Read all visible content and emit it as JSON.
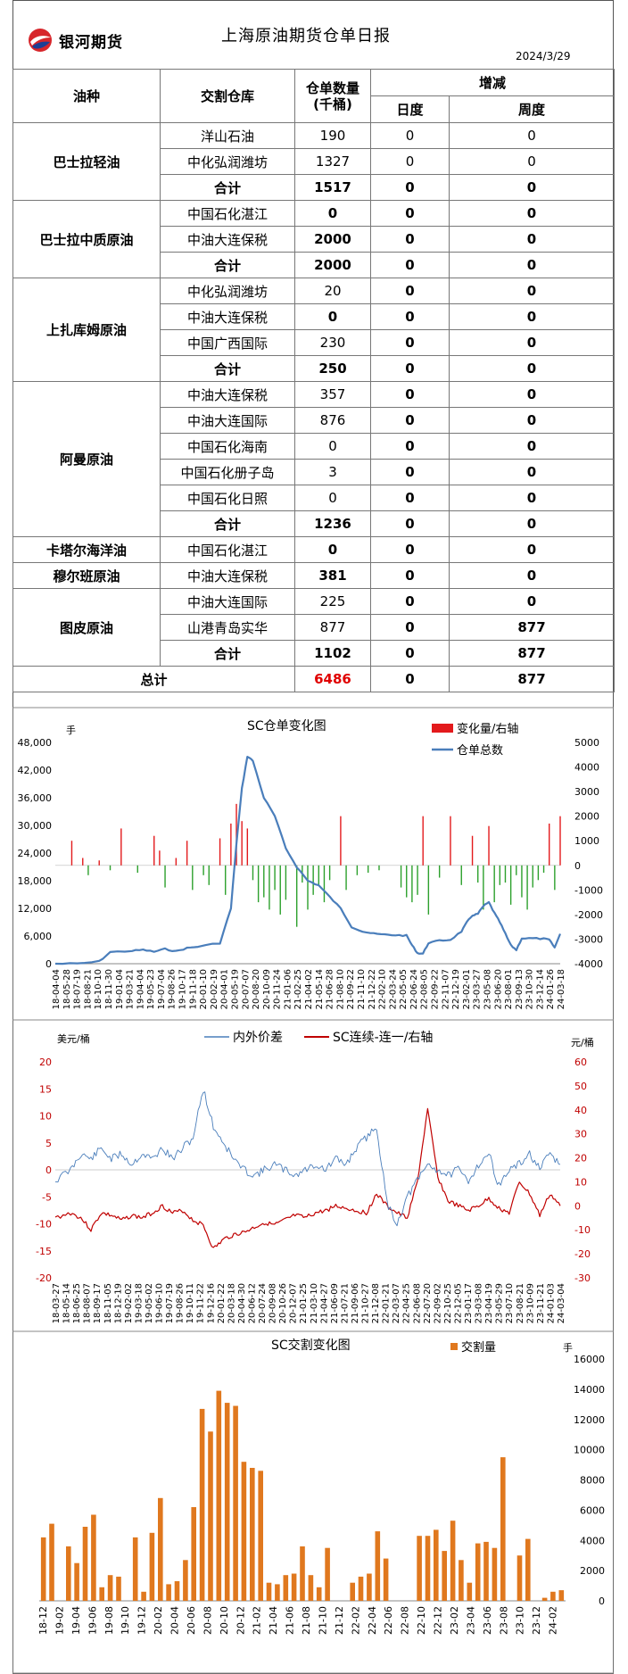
{
  "header": {
    "brand": "银河期货",
    "title": "上海原油期货仓单日报",
    "date": "2024/3/29"
  },
  "table": {
    "col_oil": "油种",
    "col_wh": "交割仓库",
    "col_qty": "仓单数量",
    "col_qty_unit": "(千桶)",
    "col_change": "增减",
    "col_day": "日度",
    "col_week": "周度",
    "groups": [
      {
        "oil": "巴士拉轻油",
        "rows": [
          {
            "wh": "洋山石油",
            "qty": "190",
            "day": "0",
            "week": "0"
          },
          {
            "wh": "中化弘润潍坊",
            "qty": "1327",
            "day": "0",
            "week": "0"
          },
          {
            "wh": "合计",
            "qty": "1517",
            "day": "0",
            "week": "0",
            "total": true
          }
        ]
      },
      {
        "oil": "巴士拉中质原油",
        "rows": [
          {
            "wh": "中国石化湛江",
            "qty": "0",
            "day": "0",
            "week": "0"
          },
          {
            "wh": "中油大连保税",
            "qty": "2000",
            "day": "0",
            "week": "0"
          },
          {
            "wh": "合计",
            "qty": "2000",
            "day": "0",
            "week": "0",
            "total": true
          }
        ]
      },
      {
        "oil": "上扎库姆原油",
        "rows": [
          {
            "wh": "中化弘润潍坊",
            "qty": "20",
            "day": "0",
            "week": "0"
          },
          {
            "wh": "中油大连保税",
            "qty": "0",
            "day": "0",
            "week": "0"
          },
          {
            "wh": "中国广西国际",
            "qty": "230",
            "day": "0",
            "week": "0"
          },
          {
            "wh": "合计",
            "qty": "250",
            "day": "0",
            "week": "0",
            "total": true
          }
        ]
      },
      {
        "oil": "阿曼原油",
        "rows": [
          {
            "wh": "中油大连保税",
            "qty": "357",
            "day": "0",
            "week": "0"
          },
          {
            "wh": "中油大连国际",
            "qty": "876",
            "day": "0",
            "week": "0"
          },
          {
            "wh": "中国石化海南",
            "qty": "0",
            "day": "0",
            "week": "0"
          },
          {
            "wh": "中国石化册子岛",
            "qty": "3",
            "day": "0",
            "week": "0"
          },
          {
            "wh": "中国石化日照",
            "qty": "0",
            "day": "0",
            "week": "0"
          },
          {
            "wh": "合计",
            "qty": "1236",
            "day": "0",
            "week": "0",
            "total": true
          }
        ]
      },
      {
        "oil": "卡塔尔海洋油",
        "rows": [
          {
            "wh": "中国石化湛江",
            "qty": "0",
            "day": "0",
            "week": "0"
          }
        ]
      },
      {
        "oil": "穆尔班原油",
        "rows": [
          {
            "wh": "中油大连保税",
            "qty": "381",
            "day": "0",
            "week": "0"
          }
        ]
      },
      {
        "oil": "图皮原油",
        "rows": [
          {
            "wh": "中油大连国际",
            "qty": "225",
            "day": "0",
            "week": "0"
          },
          {
            "wh": "山港青岛实华",
            "qty": "877",
            "day": "0",
            "week": "877"
          },
          {
            "wh": "合计",
            "qty": "1102",
            "day": "0",
            "week": "877",
            "total": true
          }
        ]
      }
    ],
    "grand_label": "总计",
    "grand_qty": "6486",
    "grand_day": "0",
    "grand_week": "877"
  },
  "colors": {
    "red": "#e31a1c",
    "green": "#2ca02c",
    "blue": "#4a7ebb",
    "darkred": "#c00000",
    "orange": "#e0781e"
  },
  "chart_data": [
    {
      "type": "bar+line",
      "title": "SC仓单变化图",
      "left_unit": "手",
      "legend": [
        "变化量/右轴",
        "仓单总数"
      ],
      "legend_position": "top-right",
      "ylim_left": [
        0,
        48000
      ],
      "yticks_left": [
        "0",
        "6,000",
        "12,000",
        "18,000",
        "24,000",
        "30,000",
        "36,000",
        "42,000",
        "48,000"
      ],
      "ylim_right": [
        -4000,
        5000
      ],
      "yticks_right": [
        "-4000",
        "-3000",
        "-2000",
        "-1000",
        "0",
        "1000",
        "2000",
        "3000",
        "4000",
        "5000"
      ],
      "x_labels": [
        "18-04-04",
        "18-05-28",
        "18-07-19",
        "18-08-21",
        "18-10-10",
        "18-11-30",
        "19-01-04",
        "19-03-21",
        "19-04-04",
        "19-05-23",
        "19-07-04",
        "19-08-26",
        "19-10-17",
        "19-11-18",
        "20-01-10",
        "20-02-19",
        "20-04-01",
        "20-05-19",
        "20-07-07",
        "20-08-20",
        "20-10-09",
        "20-11-24",
        "21-01-06",
        "21-02-25",
        "21-04-02",
        "21-05-14",
        "21-06-28",
        "21-08-10",
        "21-09-22",
        "21-11-10",
        "21-12-22",
        "22-02-10",
        "22-03-24",
        "22-05-05",
        "22-06-24",
        "22-08-05",
        "22-09-22",
        "22-11-07",
        "22-12-19",
        "23-02-01",
        "23-03-27",
        "23-05-08",
        "23-06-20",
        "23-08-01",
        "23-09-13",
        "23-10-30",
        "23-12-14",
        "24-01-26",
        "24-03-18"
      ],
      "total_line": [
        [
          0,
          0
        ],
        [
          4,
          0
        ],
        [
          8,
          500
        ],
        [
          10,
          2500
        ],
        [
          14,
          2800
        ],
        [
          16,
          3000
        ],
        [
          18,
          2600
        ],
        [
          20,
          3200
        ],
        [
          22,
          2700
        ],
        [
          24,
          3400
        ],
        [
          26,
          3700
        ],
        [
          30,
          4500
        ],
        [
          32,
          12000
        ],
        [
          33,
          26000
        ],
        [
          34,
          38000
        ],
        [
          35,
          45000
        ],
        [
          36,
          44000
        ],
        [
          38,
          36000
        ],
        [
          40,
          32000
        ],
        [
          42,
          25000
        ],
        [
          44,
          21000
        ],
        [
          46,
          18000
        ],
        [
          48,
          17000
        ],
        [
          50,
          14500
        ],
        [
          52,
          12000
        ],
        [
          54,
          8000
        ],
        [
          56,
          7000
        ],
        [
          58,
          6500
        ],
        [
          60,
          6300
        ],
        [
          62,
          6200
        ],
        [
          64,
          6100
        ],
        [
          65,
          4000
        ],
        [
          66,
          2300
        ],
        [
          67,
          2200
        ],
        [
          68,
          4500
        ],
        [
          70,
          5000
        ],
        [
          72,
          5200
        ],
        [
          74,
          7000
        ],
        [
          75,
          9000
        ],
        [
          76,
          10500
        ],
        [
          77,
          10800
        ],
        [
          78,
          12500
        ],
        [
          79,
          13300
        ],
        [
          80,
          11000
        ],
        [
          81,
          9000
        ],
        [
          82,
          6500
        ],
        [
          83,
          4000
        ],
        [
          84,
          3000
        ],
        [
          85,
          5500
        ],
        [
          87,
          5500
        ],
        [
          89,
          5400
        ],
        [
          90,
          5200
        ],
        [
          91,
          3500
        ],
        [
          92,
          6486
        ]
      ],
      "change_bars": [
        [
          3,
          1000
        ],
        [
          5,
          300
        ],
        [
          6,
          -400
        ],
        [
          8,
          200
        ],
        [
          10,
          -200
        ],
        [
          12,
          1500
        ],
        [
          15,
          -300
        ],
        [
          18,
          1200
        ],
        [
          19,
          600
        ],
        [
          20,
          -900
        ],
        [
          22,
          300
        ],
        [
          24,
          1000
        ],
        [
          25,
          -1000
        ],
        [
          27,
          -400
        ],
        [
          28,
          -800
        ],
        [
          30,
          1100
        ],
        [
          31,
          -1200
        ],
        [
          32,
          1700
        ],
        [
          33,
          2500
        ],
        [
          34,
          1800
        ],
        [
          35,
          1500
        ],
        [
          36,
          -600
        ],
        [
          37,
          -1500
        ],
        [
          38,
          -1300
        ],
        [
          39,
          -1800
        ],
        [
          40,
          -1000
        ],
        [
          41,
          -2000
        ],
        [
          42,
          -1400
        ],
        [
          44,
          -2500
        ],
        [
          45,
          -700
        ],
        [
          46,
          -1800
        ],
        [
          47,
          -1200
        ],
        [
          48,
          -800
        ],
        [
          49,
          -1500
        ],
        [
          50,
          -600
        ],
        [
          52,
          2000
        ],
        [
          53,
          -1000
        ],
        [
          55,
          -400
        ],
        [
          57,
          -300
        ],
        [
          59,
          -200
        ],
        [
          63,
          -900
        ],
        [
          64,
          -1300
        ],
        [
          65,
          -1500
        ],
        [
          66,
          -1200
        ],
        [
          67,
          2000
        ],
        [
          68,
          -2000
        ],
        [
          70,
          -500
        ],
        [
          72,
          2000
        ],
        [
          74,
          -800
        ],
        [
          76,
          1200
        ],
        [
          77,
          -700
        ],
        [
          78,
          -1800
        ],
        [
          79,
          1600
        ],
        [
          80,
          -1500
        ],
        [
          81,
          -800
        ],
        [
          82,
          -700
        ],
        [
          83,
          -1600
        ],
        [
          84,
          -400
        ],
        [
          85,
          -1300
        ],
        [
          86,
          -1800
        ],
        [
          87,
          -900
        ],
        [
          88,
          -600
        ],
        [
          89,
          -300
        ],
        [
          90,
          1700
        ],
        [
          91,
          -1000
        ],
        [
          92,
          2000
        ]
      ]
    },
    {
      "type": "line",
      "title_left": "内外价差",
      "title_right": "SC连续-连一/右轴",
      "left_unit": "美元/桶",
      "right_unit": "元/桶",
      "ylim_left": [
        -20,
        20
      ],
      "yticks_left": [
        "-20",
        "-15",
        "-10",
        "-5",
        "0",
        "5",
        "10",
        "15",
        "20"
      ],
      "ylim_right": [
        -30,
        60
      ],
      "yticks_right": [
        "-30",
        "-20",
        "-10",
        "0",
        "10",
        "20",
        "30",
        "40",
        "50",
        "60"
      ],
      "x_labels": [
        "18-03-27",
        "18-05-14",
        "18-06-25",
        "18-08-07",
        "18-09-17",
        "18-11-05",
        "18-12-19",
        "19-02-02",
        "19-03-18",
        "19-05-02",
        "19-06-10",
        "19-07-19",
        "19-08-26",
        "19-10-11",
        "19-11-22",
        "19-12-16",
        "20-01-22",
        "20-03-18",
        "20-04-30",
        "20-06-12",
        "20-07-24",
        "20-09-08",
        "20-10-26",
        "20-12-07",
        "21-01-25",
        "21-03-10",
        "21-04-27",
        "21-06-09",
        "21-07-21",
        "21-09-06",
        "21-10-27",
        "21-12-08",
        "22-01-21",
        "22-03-07",
        "22-04-25",
        "22-06-08",
        "22-07-20",
        "22-09-02",
        "22-10-25",
        "22-12-05",
        "23-01-17",
        "23-03-08",
        "23-04-19",
        "23-05-29",
        "23-07-10",
        "23-08-21",
        "23-10-09",
        "23-11-21",
        "24-01-03",
        "24-03-04"
      ],
      "spread_left": [
        [
          0,
          -2
        ],
        [
          3,
          0
        ],
        [
          5,
          3
        ],
        [
          7,
          2
        ],
        [
          9,
          4
        ],
        [
          11,
          2
        ],
        [
          13,
          3
        ],
        [
          15,
          1
        ],
        [
          17,
          3
        ],
        [
          19,
          2
        ],
        [
          21,
          4
        ],
        [
          23,
          2
        ],
        [
          25,
          4
        ],
        [
          27,
          6
        ],
        [
          29,
          15
        ],
        [
          31,
          8
        ],
        [
          33,
          5
        ],
        [
          35,
          2
        ],
        [
          37,
          0
        ],
        [
          39,
          -1
        ],
        [
          41,
          0
        ],
        [
          43,
          1
        ],
        [
          45,
          0
        ],
        [
          47,
          -1
        ],
        [
          49,
          0
        ],
        [
          51,
          1
        ],
        [
          53,
          0
        ],
        [
          55,
          2
        ],
        [
          57,
          1
        ],
        [
          59,
          4
        ],
        [
          61,
          6
        ],
        [
          63,
          8
        ],
        [
          65,
          -6
        ],
        [
          67,
          -10
        ],
        [
          69,
          -5
        ],
        [
          71,
          -2
        ],
        [
          73,
          1
        ],
        [
          75,
          0
        ],
        [
          77,
          -1
        ],
        [
          79,
          0
        ],
        [
          81,
          -2
        ],
        [
          83,
          1
        ],
        [
          85,
          3
        ],
        [
          87,
          -3
        ],
        [
          89,
          0
        ],
        [
          91,
          1
        ],
        [
          93,
          3
        ],
        [
          95,
          0
        ],
        [
          97,
          3
        ],
        [
          99,
          1
        ]
      ],
      "sc_right": [
        [
          0,
          -5
        ],
        [
          3,
          -3
        ],
        [
          5,
          -5
        ],
        [
          7,
          -10
        ],
        [
          9,
          -3
        ],
        [
          11,
          -4
        ],
        [
          13,
          -6
        ],
        [
          15,
          -4
        ],
        [
          17,
          -5
        ],
        [
          19,
          -3
        ],
        [
          21,
          0
        ],
        [
          23,
          -3
        ],
        [
          25,
          -2
        ],
        [
          27,
          -6
        ],
        [
          29,
          -8
        ],
        [
          31,
          -18
        ],
        [
          33,
          -14
        ],
        [
          35,
          -12
        ],
        [
          37,
          -11
        ],
        [
          39,
          -9
        ],
        [
          41,
          -7
        ],
        [
          43,
          -8
        ],
        [
          45,
          -6
        ],
        [
          47,
          -4
        ],
        [
          49,
          -5
        ],
        [
          51,
          -3
        ],
        [
          53,
          -2
        ],
        [
          55,
          0
        ],
        [
          57,
          -1
        ],
        [
          59,
          -2
        ],
        [
          61,
          -3
        ],
        [
          63,
          5
        ],
        [
          65,
          0
        ],
        [
          67,
          -3
        ],
        [
          69,
          -5
        ],
        [
          71,
          10
        ],
        [
          73,
          40
        ],
        [
          75,
          12
        ],
        [
          77,
          2
        ],
        [
          79,
          0
        ],
        [
          81,
          -2
        ],
        [
          83,
          0
        ],
        [
          85,
          3
        ],
        [
          87,
          -1
        ],
        [
          89,
          -3
        ],
        [
          91,
          10
        ],
        [
          93,
          5
        ],
        [
          95,
          -4
        ],
        [
          97,
          5
        ],
        [
          99,
          0
        ]
      ]
    },
    {
      "type": "bar",
      "title": "SC交割变化图",
      "legend": [
        "交割量"
      ],
      "legend_position": "top-right",
      "right_unit": "手",
      "ylim": [
        0,
        16000
      ],
      "yticks": [
        "0",
        "2000",
        "4000",
        "6000",
        "8000",
        "10000",
        "12000",
        "14000",
        "16000"
      ],
      "x_labels": [
        "18-12",
        "19-02",
        "19-04",
        "19-06",
        "19-08",
        "19-10",
        "19-12",
        "20-02",
        "20-04",
        "20-06",
        "20-08",
        "20-10",
        "20-12",
        "21-02",
        "21-04",
        "21-06",
        "21-08",
        "21-10",
        "21-12",
        "22-02",
        "22-04",
        "22-06",
        "22-08",
        "22-10",
        "22-12",
        "23-02",
        "23-04",
        "23-06",
        "23-08",
        "23-10",
        "23-12",
        "24-02"
      ],
      "values": [
        4200,
        5100,
        0,
        3600,
        2500,
        4900,
        5700,
        900,
        1700,
        1600,
        0,
        4200,
        600,
        4500,
        6800,
        1100,
        1300,
        2700,
        6200,
        12700,
        11200,
        13900,
        13100,
        12900,
        9200,
        8800,
        8600,
        1200,
        1100,
        1700,
        1800,
        3600,
        1700,
        900,
        3500,
        0,
        0,
        1200,
        1600,
        1800,
        4600,
        2800,
        0,
        0,
        0,
        4300,
        4300,
        4700,
        3300,
        5300,
        2700,
        1200,
        3800,
        3900,
        3500,
        9500,
        0,
        3000,
        4100,
        0,
        200,
        600,
        700
      ]
    }
  ]
}
